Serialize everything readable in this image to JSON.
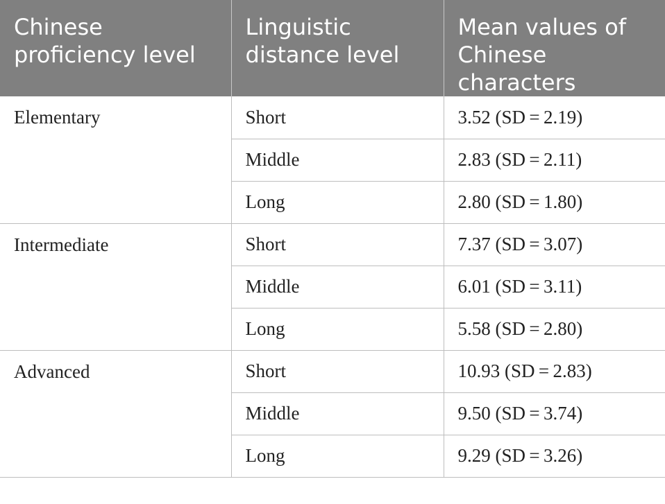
{
  "table": {
    "headers": [
      "Chinese proficiency level",
      "Linguistic distance level",
      "Mean values of Chinese characters"
    ],
    "groups": [
      {
        "level": "Elementary",
        "rows": [
          {
            "distance": "Short",
            "mean": "3.52 (SD = 2.19)"
          },
          {
            "distance": "Middle",
            "mean": "2.83 (SD = 2.11)"
          },
          {
            "distance": "Long",
            "mean": "2.80 (SD = 1.80)"
          }
        ]
      },
      {
        "level": "Intermediate",
        "rows": [
          {
            "distance": "Short",
            "mean": "7.37 (SD = 3.07)"
          },
          {
            "distance": "Middle",
            "mean": "6.01 (SD = 3.11)"
          },
          {
            "distance": "Long",
            "mean": "5.58 (SD = 2.80)"
          }
        ]
      },
      {
        "level": "Advanced",
        "rows": [
          {
            "distance": "Short",
            "mean": "10.93 (SD = 2.83)"
          },
          {
            "distance": "Middle",
            "mean": "9.50 (SD = 3.74)"
          },
          {
            "distance": "Long",
            "mean": "9.29 (SD = 3.26)"
          }
        ]
      }
    ]
  },
  "colors": {
    "header_bg": "#808080",
    "header_text": "#ffffff",
    "grid": "#bdbdbd"
  }
}
